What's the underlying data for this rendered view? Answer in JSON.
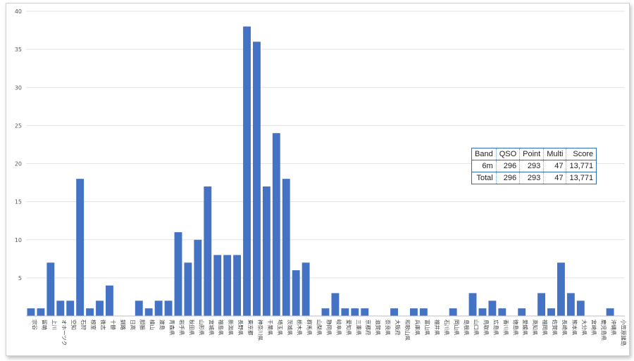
{
  "chart_data": {
    "type": "bar",
    "title": "",
    "xlabel": "",
    "ylabel": "",
    "ylim": [
      0,
      40
    ],
    "yticks": [
      5,
      10,
      15,
      20,
      25,
      30,
      35,
      40
    ],
    "grid": true,
    "bar_color": "#4472c4",
    "categories": [
      "宗谷",
      "留萌",
      "上川",
      "オホーツク",
      "空知",
      "石狩",
      "根室",
      "後志",
      "十勝",
      "釧路",
      "日高",
      "胆振",
      "檜山",
      "渡島",
      "青森県",
      "岩手県",
      "秋田県",
      "山形県",
      "宮城県",
      "福島県",
      "新潟県",
      "長野県",
      "東京都",
      "神奈川県",
      "千葉県",
      "埼玉県",
      "茨城県",
      "栃木県",
      "群馬県",
      "山梨県",
      "静岡県",
      "岐阜県",
      "愛知県",
      "三重県",
      "京都府",
      "滋賀県",
      "奈良県",
      "大阪府",
      "和歌山県",
      "兵庫県",
      "富山県",
      "福井県",
      "石川県",
      "岡山県",
      "島根県",
      "山口県",
      "鳥取県",
      "広島県",
      "香川県",
      "徳島県",
      "愛媛県",
      "高知県",
      "福岡県",
      "佐賀県",
      "長崎県",
      "熊本県",
      "大分県",
      "宮崎県",
      "鹿児島県",
      "沖縄県",
      "小笠原諸島"
    ],
    "values": [
      1,
      1,
      7,
      2,
      2,
      18,
      1,
      2,
      4,
      0,
      0,
      2,
      1,
      2,
      2,
      11,
      7,
      10,
      17,
      8,
      8,
      8,
      38,
      36,
      17,
      24,
      18,
      6,
      7,
      0,
      1,
      3,
      1,
      1,
      1,
      0,
      0,
      1,
      0,
      1,
      1,
      0,
      0,
      1,
      0,
      3,
      1,
      2,
      1,
      0,
      1,
      0,
      3,
      1,
      7,
      3,
      2,
      0,
      0,
      1,
      0
    ]
  },
  "score_table": {
    "headers": [
      "Band",
      "QSO",
      "Point",
      "Multi",
      "Score"
    ],
    "rows": [
      [
        "6m",
        "296",
        "293",
        "47",
        "13,771"
      ],
      [
        "Total",
        "296",
        "293",
        "47",
        "13,771"
      ]
    ]
  }
}
